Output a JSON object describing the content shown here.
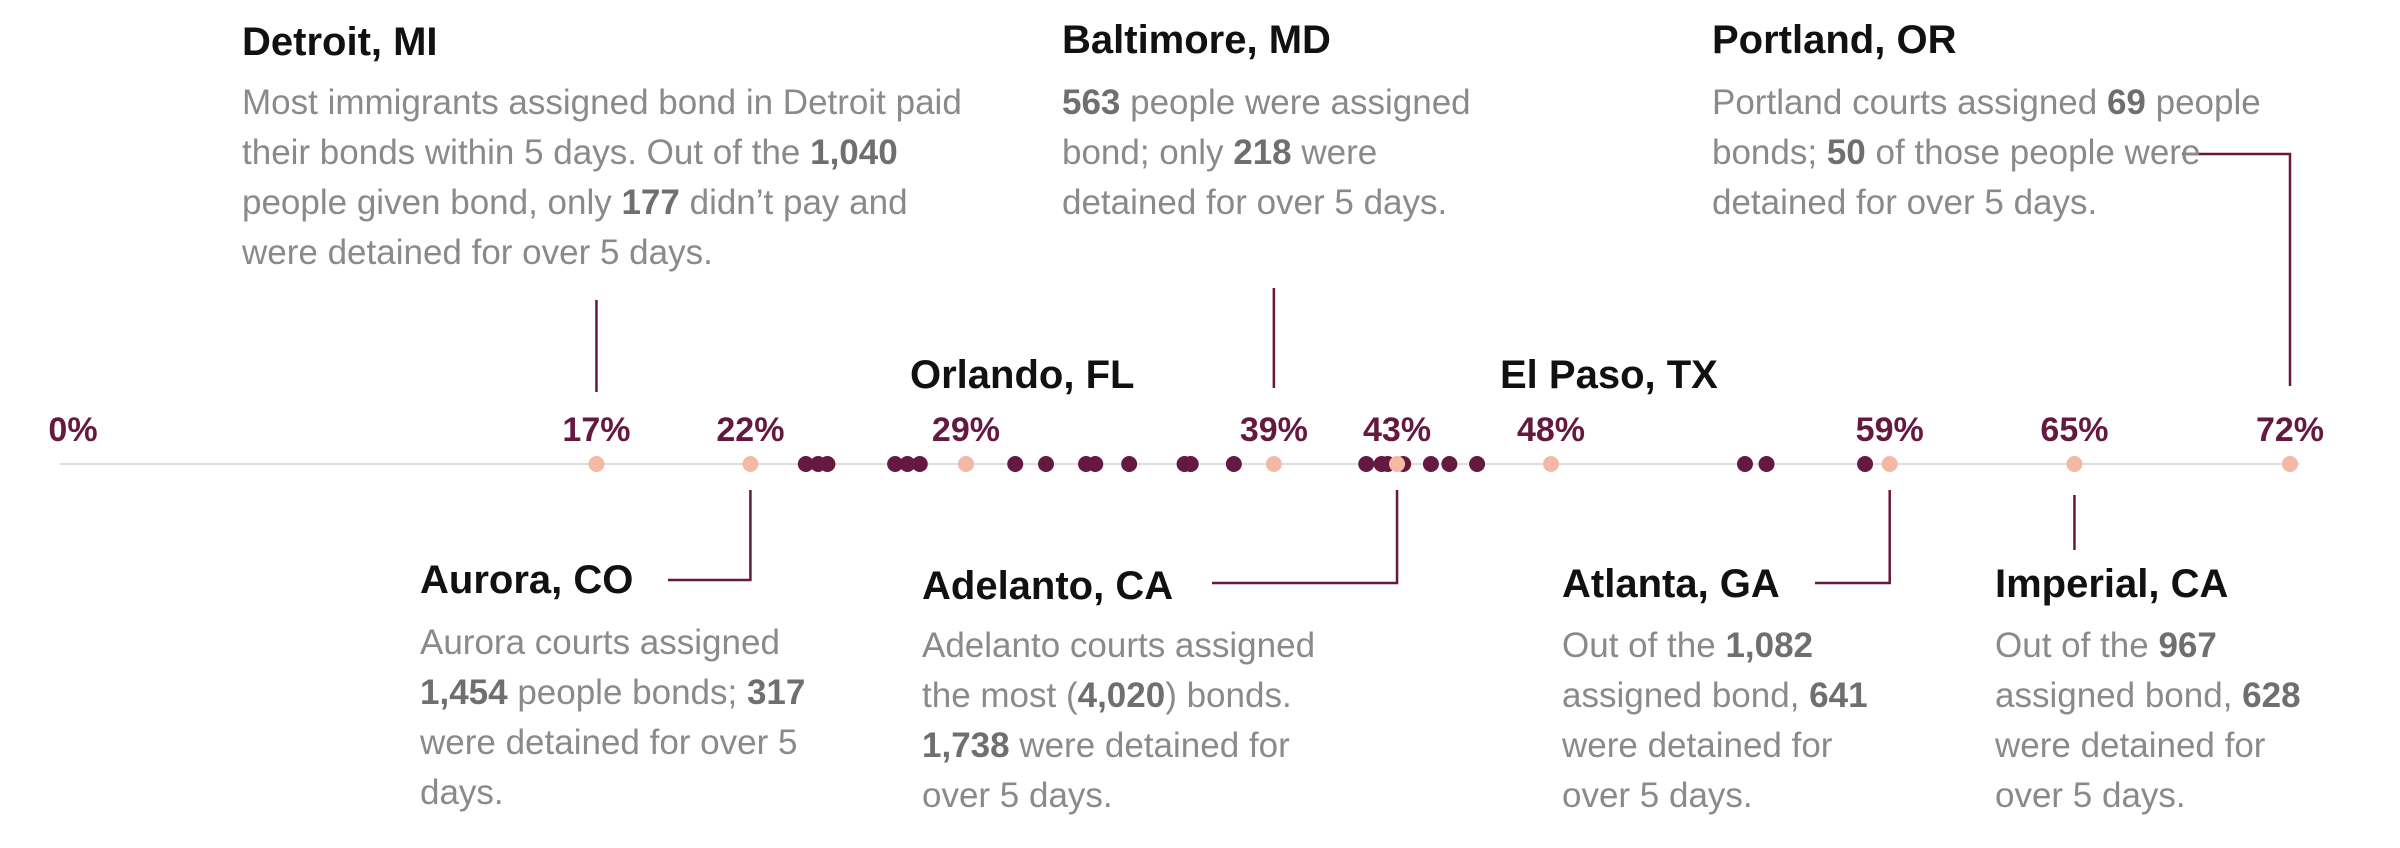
{
  "colors": {
    "baseline": "#dddddd",
    "dot_dark": "#651940",
    "dot_light": "#f3b9a4",
    "tick_label": "#651940",
    "leader": "#651940",
    "city": "#111111",
    "desc": "#8a8a8a",
    "desc_bold": "#6f6f6f"
  },
  "chart_data": {
    "type": "scatter",
    "xlim": [
      0,
      72
    ],
    "tick_labels": [
      "0%",
      "17%",
      "22%",
      "29%",
      "39%",
      "43%",
      "48%",
      "59%",
      "65%",
      "72%"
    ],
    "highlighted": [
      {
        "city": "Detroit, MI",
        "value": 17
      },
      {
        "city": "Aurora, CO",
        "value": 22
      },
      {
        "city": "Orlando, FL",
        "value": 29
      },
      {
        "city": "Baltimore, MD",
        "value": 39
      },
      {
        "city": "Adelanto, CA",
        "value": 43
      },
      {
        "city": "El Paso, TX",
        "value": 48
      },
      {
        "city": "Atlanta, GA",
        "value": 59
      },
      {
        "city": "Imperial, CA",
        "value": 65
      },
      {
        "city": "Portland, OR",
        "value": 72
      }
    ],
    "other_values": [
      23.8,
      24.2,
      24.5,
      26.7,
      27.1,
      27.5,
      30.6,
      31.6,
      32.9,
      33.2,
      34.3,
      36.1,
      36.3,
      37.7,
      42.0,
      42.5,
      42.7,
      43.2,
      44.1,
      44.7,
      45.6,
      54.3,
      55.0,
      58.2
    ]
  },
  "annotations": {
    "detroit": {
      "city": "Detroit, MI",
      "text": [
        {
          "t": "Most immigrants assigned bond in Detroit paid their bonds within 5 days. Out of the "
        },
        {
          "b": "1,040"
        },
        {
          "t": " people given bond, only "
        },
        {
          "b": "177"
        },
        {
          "t": " didn’t pay and were detained for over 5 days."
        }
      ]
    },
    "baltimore": {
      "city": "Baltimore, MD",
      "text": [
        {
          "b": "563"
        },
        {
          "t": " people were assigned bond; only "
        },
        {
          "b": "218"
        },
        {
          "t": " were detained for over 5 days."
        }
      ]
    },
    "portland": {
      "city": "Portland, OR",
      "text": [
        {
          "t": "Portland courts assigned "
        },
        {
          "b": "69"
        },
        {
          "t": " people bonds; "
        },
        {
          "b": "50"
        },
        {
          "t": " of those people were detained for over 5 days."
        }
      ]
    },
    "orlando": {
      "city": "Orlando, FL"
    },
    "elpaso": {
      "city": "El Paso, TX"
    },
    "aurora": {
      "city": "Aurora, CO",
      "text": [
        {
          "t": "Aurora courts assigned "
        },
        {
          "b": "1,454"
        },
        {
          "t": " people bonds; "
        },
        {
          "b": "317"
        },
        {
          "t": " were detained for over 5 days."
        }
      ]
    },
    "adelanto": {
      "city": "Adelanto, CA",
      "text": [
        {
          "t": "Adelanto courts assigned the most ("
        },
        {
          "b": "4,020"
        },
        {
          "t": ") bonds. "
        },
        {
          "b": "1,738"
        },
        {
          "t": " were detained for over 5 days."
        }
      ]
    },
    "atlanta": {
      "city": "Atlanta, GA",
      "text": [
        {
          "t": "Out of the "
        },
        {
          "b": "1,082"
        },
        {
          "t": " assigned bond, "
        },
        {
          "b": "641"
        },
        {
          "t": " were detained for over 5 days."
        }
      ]
    },
    "imperial": {
      "city": "Imperial, CA",
      "text": [
        {
          "t": "Out of the "
        },
        {
          "b": "967"
        },
        {
          "t": " assigned bond, "
        },
        {
          "b": "628"
        },
        {
          "t": " were detained for over 5 days."
        }
      ]
    }
  }
}
